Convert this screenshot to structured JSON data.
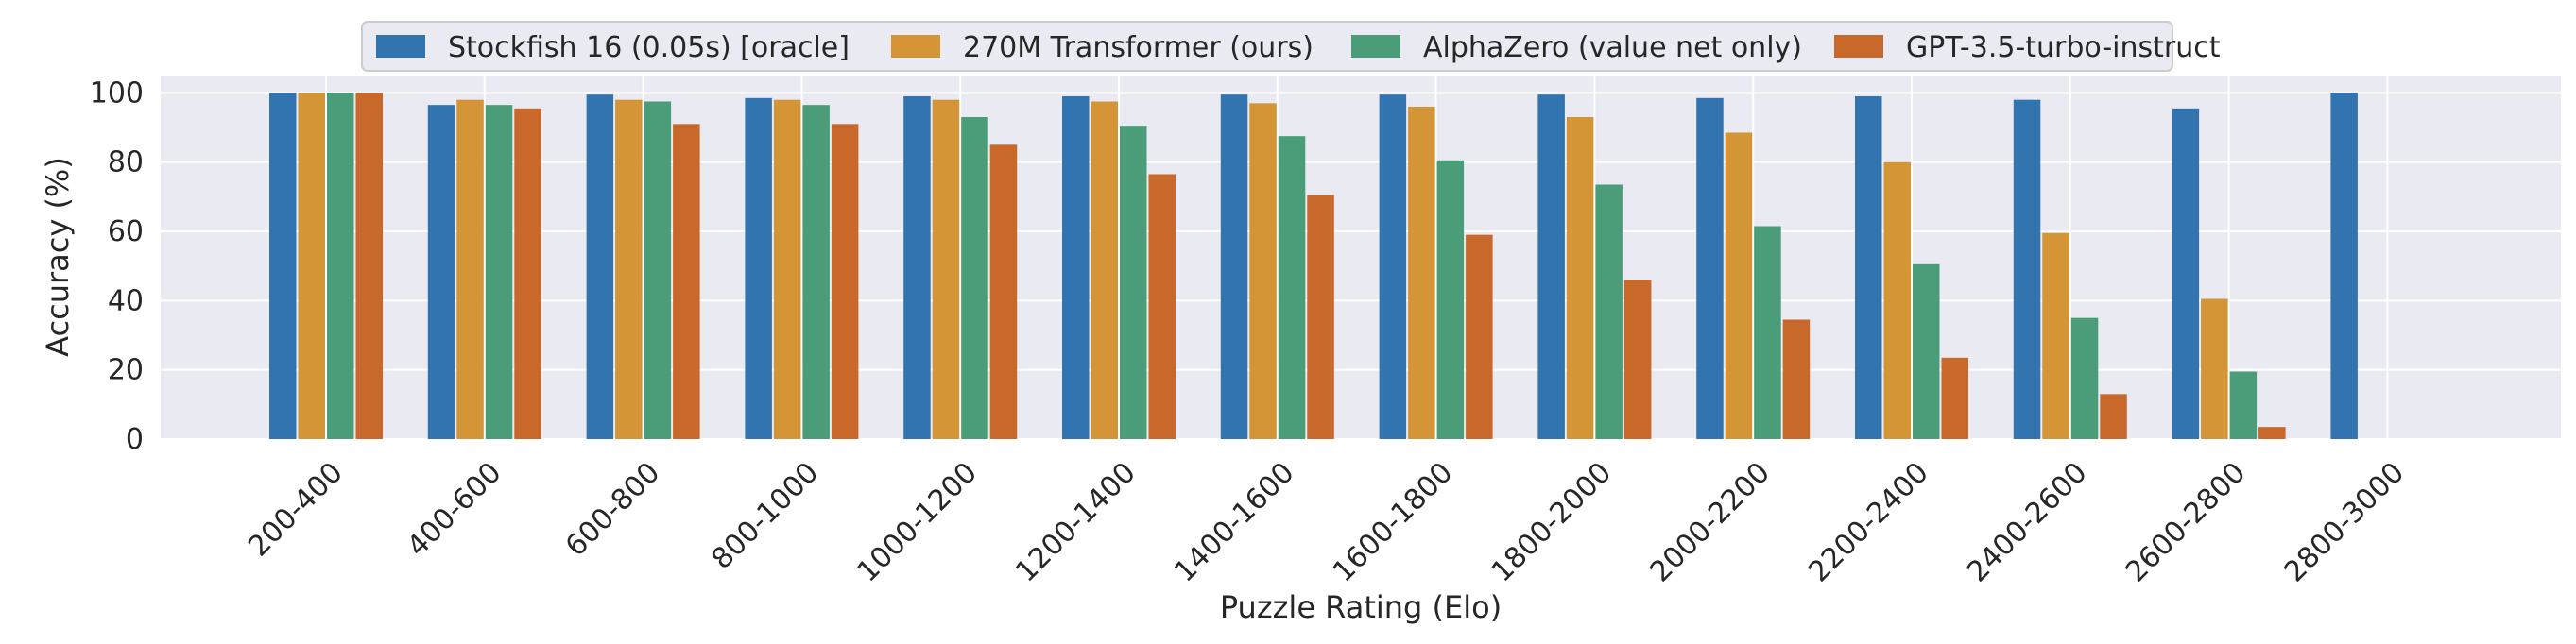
{
  "chart_data": {
    "type": "bar",
    "xlabel": "Puzzle Rating (Elo)",
    "ylabel": "Accuracy (%)",
    "ylim": [
      0,
      105
    ],
    "yticks": [
      0,
      20,
      40,
      60,
      80,
      100
    ],
    "grid": true,
    "legend_position": "top-center",
    "categories": [
      "200-400",
      "400-600",
      "600-800",
      "800-1000",
      "1000-1200",
      "1200-1400",
      "1400-1600",
      "1600-1800",
      "1800-2000",
      "2000-2200",
      "2200-2400",
      "2400-2600",
      "2600-2800",
      "2800-3000"
    ],
    "series": [
      {
        "name": "Stockfish 16 (0.05s) [oracle]",
        "color": "#3274b0",
        "values": [
          100,
          96.5,
          99.5,
          98.5,
          99,
          99,
          99.5,
          99.5,
          99.5,
          98.5,
          99,
          98,
          95.5,
          100
        ]
      },
      {
        "name": "270M Transformer (ours)",
        "color": "#d39536",
        "values": [
          100,
          98,
          98,
          98,
          98,
          97.5,
          97,
          96,
          93,
          88.5,
          80,
          59.5,
          40.5,
          null
        ]
      },
      {
        "name": "AlphaZero (value net only)",
        "color": "#4a9d78",
        "values": [
          100,
          96.5,
          97.5,
          96.5,
          93,
          90.5,
          87.5,
          80.5,
          73.5,
          61.5,
          50.5,
          35,
          19.5,
          null
        ]
      },
      {
        "name": "GPT-3.5-turbo-instruct",
        "color": "#c8682b",
        "values": [
          100,
          95.5,
          91,
          91,
          85,
          76.5,
          70.5,
          59,
          46,
          34.5,
          23.5,
          13,
          3.5,
          null
        ]
      }
    ]
  }
}
